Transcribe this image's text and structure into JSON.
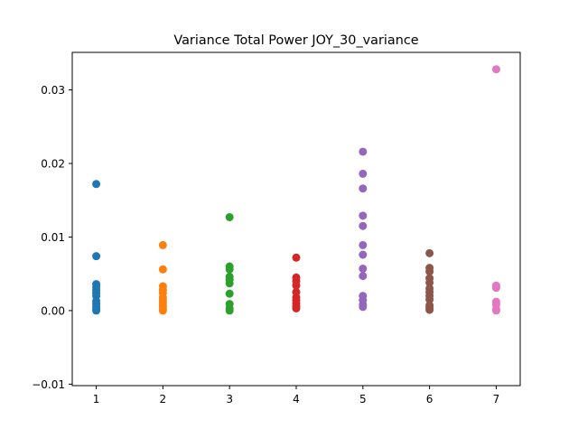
{
  "chart_data": {
    "type": "scatter",
    "title": "Variance Total Power JOY_30_variance",
    "xlabel": "",
    "ylabel": "",
    "xlim": [
      0.64,
      7.36
    ],
    "ylim": [
      -0.0102,
      0.0351
    ],
    "x_ticks": [
      1,
      2,
      3,
      4,
      5,
      6,
      7
    ],
    "x_tick_labels": [
      "1",
      "2",
      "3",
      "4",
      "5",
      "6",
      "7"
    ],
    "y_ticks": [
      -0.01,
      0.0,
      0.01,
      0.02,
      0.03
    ],
    "y_tick_labels": [
      "−0.01",
      "0.00",
      "0.01",
      "0.02",
      "0.03"
    ],
    "grid": false,
    "legend": "none",
    "series": [
      {
        "x": 1,
        "color": "#1f77b4",
        "values": [
          0.0172,
          0.0074,
          0.0036,
          0.0032,
          0.0028,
          0.0024,
          0.002,
          0.0013,
          0.0009,
          0.0005,
          0.0002,
          0.0
        ]
      },
      {
        "x": 2,
        "color": "#ff7f0e",
        "values": [
          0.0089,
          0.0056,
          0.0033,
          0.0028,
          0.0024,
          0.0018,
          0.0014,
          0.001,
          0.0006,
          0.0002,
          0.0
        ]
      },
      {
        "x": 3,
        "color": "#2ca02c",
        "values": [
          0.0127,
          0.006,
          0.0056,
          0.0046,
          0.0042,
          0.0037,
          0.0023,
          0.0009,
          0.0003,
          0.0
        ]
      },
      {
        "x": 4,
        "color": "#d62728",
        "values": [
          0.0072,
          0.0045,
          0.004,
          0.0034,
          0.0025,
          0.0018,
          0.0014,
          0.001,
          0.0006,
          0.0003
        ]
      },
      {
        "x": 5,
        "color": "#9467bd",
        "values": [
          0.0216,
          0.0186,
          0.0166,
          0.0129,
          0.0115,
          0.0089,
          0.0076,
          0.0057,
          0.0047,
          0.002,
          0.0014,
          0.0008,
          0.0005
        ]
      },
      {
        "x": 6,
        "color": "#8c564b",
        "values": [
          0.0078,
          0.0058,
          0.0053,
          0.0044,
          0.0038,
          0.003,
          0.0025,
          0.002,
          0.0015,
          0.0007,
          0.0004,
          0.0001
        ]
      },
      {
        "x": 7,
        "color": "#e377c2",
        "values": [
          0.0328,
          0.0034,
          0.0031,
          0.0012,
          0.0008,
          0.0002,
          0.0
        ]
      }
    ]
  }
}
